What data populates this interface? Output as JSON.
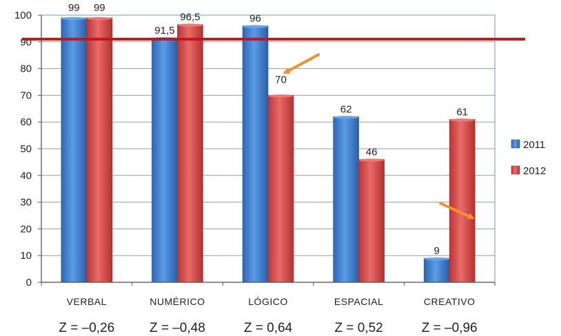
{
  "chart_data": {
    "type": "bar",
    "categories": [
      "VERBAL",
      "NUMÉRICO",
      "LÓGICO",
      "ESPACIAL",
      "CREATIVO"
    ],
    "series": [
      {
        "name": "2011",
        "values": [
          99,
          91.5,
          96,
          62,
          9
        ],
        "labels": [
          "99",
          "91,5",
          "96",
          "62",
          "9"
        ],
        "color": "#3f7fcf"
      },
      {
        "name": "2012",
        "values": [
          99,
          96.5,
          70,
          46,
          61
        ],
        "labels": [
          "99",
          "96,5",
          "70",
          "46",
          "61"
        ],
        "color": "#d9484a"
      }
    ],
    "ylim": [
      0,
      100
    ],
    "yticks": [
      "0",
      "10",
      "20",
      "30",
      "40",
      "50",
      "60",
      "70",
      "80",
      "90",
      "100"
    ],
    "grid": true,
    "legend": "right",
    "reference_line": {
      "value": 91,
      "color": "#c0171c"
    },
    "z_scores": [
      "Z = –0,26",
      "Z = –0,48",
      "Z = 0,64",
      "Z = 0,52",
      "Z = –0,96"
    ],
    "annotations": [
      {
        "type": "arrow",
        "target": "LÓGICO 2012",
        "color": "#f0922b"
      },
      {
        "type": "arrow",
        "target": "CREATIVO 2012",
        "color": "#f0922b"
      }
    ]
  }
}
